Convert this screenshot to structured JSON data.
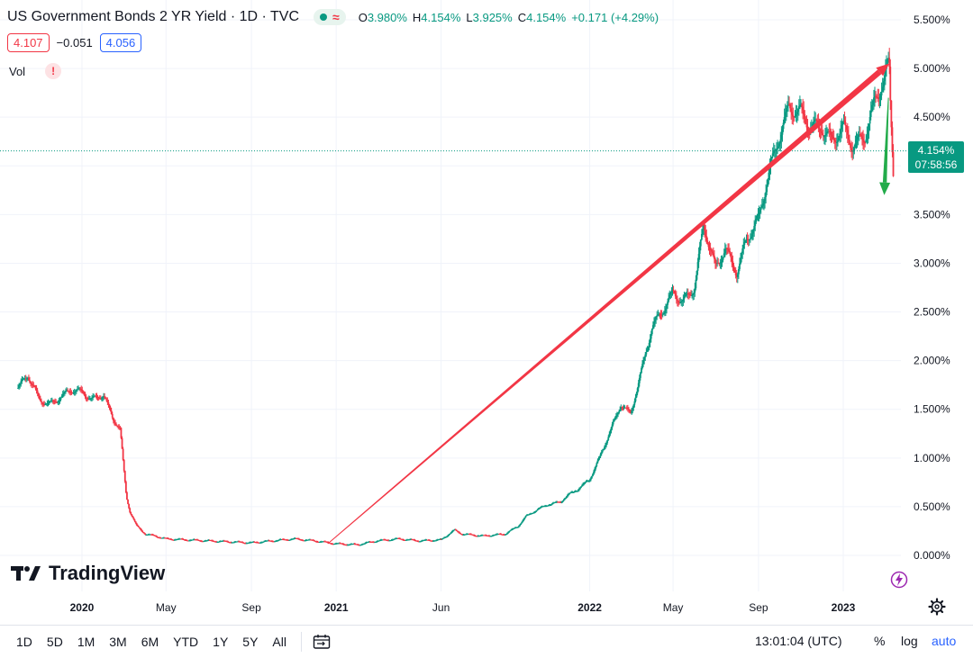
{
  "header": {
    "title": "US Government Bonds 2 YR Yield · 1D · TVC",
    "ohlc": {
      "o_label": "O",
      "o_value": "3.980%",
      "h_label": "H",
      "h_value": "4.154%",
      "l_label": "L",
      "l_value": "3.925%",
      "c_label": "C",
      "c_value": "4.154%",
      "change": "+0.171 (+4.29%)"
    },
    "market_status_icon": "market-open-dot",
    "data_status_icon": "delayed-wave",
    "sell_value": "4.107",
    "spread": "−0.051",
    "buy_value": "4.056",
    "vol_label": "Vol",
    "vol_warning": "!"
  },
  "logo_text": "TradingView",
  "price_tag": {
    "value": "4.154%",
    "countdown": "07:58:56"
  },
  "bottom": {
    "timeframes": [
      "1D",
      "5D",
      "1M",
      "3M",
      "6M",
      "YTD",
      "1Y",
      "5Y",
      "All"
    ],
    "clock": "13:01:04 (UTC)",
    "percent_label": "%",
    "log_label": "log",
    "auto_label": "auto"
  },
  "colors": {
    "up": "#089981",
    "down": "#f23645",
    "arrow_red": "#f23645",
    "arrow_green": "#22ab4a",
    "accent": "#2962ff"
  },
  "chart_data": {
    "type": "line",
    "series": [
      {
        "x": [
          "2019-10-01",
          "2019-10-15",
          "2019-11-01",
          "2019-11-15",
          "2019-12-01",
          "2019-12-15",
          "2020-01-01",
          "2020-01-15",
          "2020-02-01",
          "2020-02-15",
          "2020-02-25",
          "2020-03-01",
          "2020-03-05",
          "2020-03-10",
          "2020-03-20",
          "2020-04-01",
          "2020-04-15",
          "2020-05-01",
          "2020-06-01",
          "2020-07-01",
          "2020-08-01",
          "2020-09-01",
          "2020-10-01",
          "2020-11-01",
          "2020-12-01",
          "2021-01-01",
          "2021-02-01",
          "2021-03-01",
          "2021-04-01",
          "2021-05-01",
          "2021-06-01",
          "2021-06-20",
          "2021-07-01",
          "2021-08-01",
          "2021-09-01",
          "2021-09-20",
          "2021-10-01",
          "2021-10-20",
          "2021-11-01",
          "2021-11-20",
          "2021-12-01",
          "2021-12-15",
          "2022-01-01",
          "2022-01-15",
          "2022-02-01",
          "2022-02-15",
          "2022-03-01",
          "2022-03-15",
          "2022-04-01",
          "2022-04-15",
          "2022-05-01",
          "2022-05-15",
          "2022-06-01",
          "2022-06-14",
          "2022-07-01",
          "2022-07-15",
          "2022-08-01",
          "2022-08-15",
          "2022-09-01",
          "2022-09-15",
          "2022-10-01",
          "2022-10-15",
          "2022-11-01",
          "2022-11-15",
          "2022-12-01",
          "2022-12-15",
          "2023-01-01",
          "2023-01-15",
          "2023-02-01",
          "2023-02-15",
          "2023-03-01",
          "2023-03-08",
          "2023-03-10",
          "2023-03-14"
        ],
        "y": [
          1.72,
          1.85,
          1.6,
          1.55,
          1.62,
          1.7,
          1.68,
          1.6,
          1.65,
          1.4,
          1.3,
          0.9,
          0.6,
          0.45,
          0.3,
          0.22,
          0.2,
          0.17,
          0.16,
          0.15,
          0.14,
          0.13,
          0.15,
          0.17,
          0.15,
          0.12,
          0.11,
          0.15,
          0.17,
          0.15,
          0.16,
          0.26,
          0.22,
          0.2,
          0.22,
          0.3,
          0.4,
          0.48,
          0.52,
          0.55,
          0.62,
          0.68,
          0.78,
          1.0,
          1.3,
          1.55,
          1.45,
          1.85,
          2.35,
          2.5,
          2.7,
          2.6,
          2.75,
          3.4,
          2.95,
          3.15,
          2.9,
          3.25,
          3.45,
          3.9,
          4.3,
          4.6,
          4.55,
          4.4,
          4.4,
          4.25,
          4.4,
          4.2,
          4.3,
          4.65,
          4.9,
          5.05,
          4.6,
          3.95
        ]
      }
    ],
    "ylim": [
      0,
      5.5
    ],
    "y_ticks": [
      "0.000%",
      "0.500%",
      "1.000%",
      "1.500%",
      "2.000%",
      "2.500%",
      "3.000%",
      "3.500%",
      "4.000%",
      "4.500%",
      "5.000%",
      "5.500%"
    ],
    "y_tick_values": [
      0,
      0.5,
      1,
      1.5,
      2,
      2.5,
      3,
      3.5,
      4,
      4.5,
      5,
      5.5
    ],
    "x_ticks": [
      {
        "label": "2020",
        "date": "2020-01-01",
        "bold": true
      },
      {
        "label": "May",
        "date": "2020-05-01",
        "bold": false
      },
      {
        "label": "Sep",
        "date": "2020-09-01",
        "bold": false
      },
      {
        "label": "2021",
        "date": "2021-01-01",
        "bold": true
      },
      {
        "label": "Jun",
        "date": "2021-06-01",
        "bold": false
      },
      {
        "label": "2022",
        "date": "2022-01-01",
        "bold": true
      },
      {
        "label": "May",
        "date": "2022-05-01",
        "bold": false
      },
      {
        "label": "Sep",
        "date": "2022-09-01",
        "bold": false
      },
      {
        "label": "2023",
        "date": "2023-01-01",
        "bold": true
      }
    ],
    "last_value": 4.154,
    "annotations": [
      {
        "type": "arrow",
        "color": "red",
        "from": {
          "x": "2020-12-20",
          "y": 0.12
        },
        "to": {
          "x": "2023-03-08",
          "y": 5.05
        }
      },
      {
        "type": "arrow",
        "color": "green",
        "from": {
          "x": "2023-03-07",
          "y": 4.7
        },
        "to": {
          "x": "2023-03-01",
          "y": 3.7
        }
      }
    ],
    "grid": true
  }
}
